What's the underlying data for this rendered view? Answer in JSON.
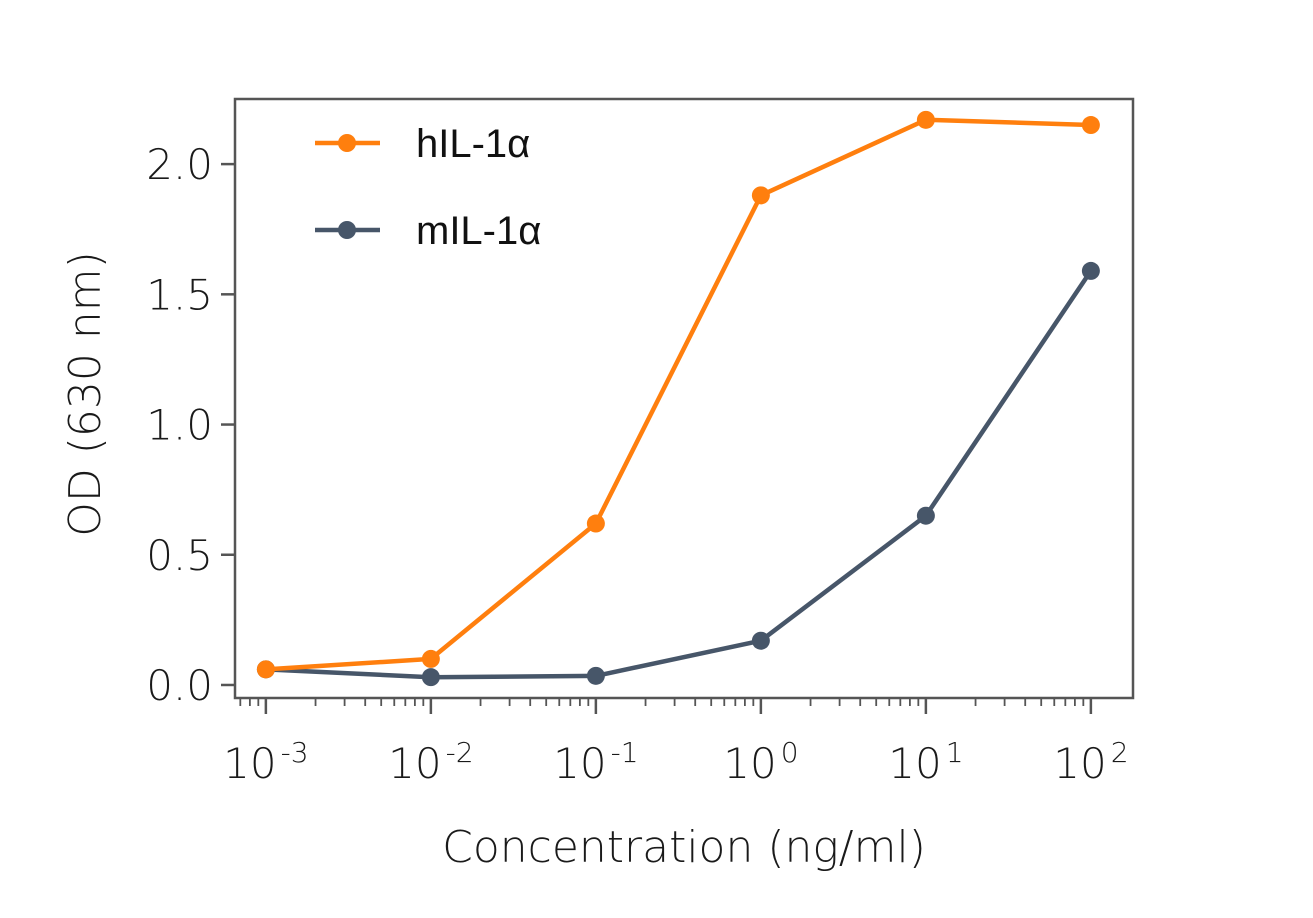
{
  "chart_data": {
    "type": "line",
    "title": "",
    "xlabel": "Concentration (ng/ml)",
    "ylabel": "OD (630 nm)",
    "x_scale": "log",
    "xlim": [
      0.00065,
      180
    ],
    "ylim": [
      -0.05,
      2.25
    ],
    "x": [
      0.001,
      0.01,
      0.1,
      1,
      10,
      100
    ],
    "x_ticks": [
      {
        "base": "10",
        "exp": "-3"
      },
      {
        "base": "10",
        "exp": "-2"
      },
      {
        "base": "10",
        "exp": "-1"
      },
      {
        "base": "10",
        "exp": "0"
      },
      {
        "base": "10",
        "exp": "1"
      },
      {
        "base": "10",
        "exp": "2"
      }
    ],
    "y_ticks": [
      "0.0",
      "0.5",
      "1.0",
      "1.5",
      "2.0"
    ],
    "grid": false,
    "legend_position": "top-left",
    "series": [
      {
        "name": "hIL-1α",
        "color": "#FF7F0E",
        "values": [
          0.06,
          0.1,
          0.62,
          1.88,
          2.17,
          2.15
        ]
      },
      {
        "name": "mIL-1α",
        "color": "#475669",
        "values": [
          0.06,
          0.03,
          0.035,
          0.17,
          0.65,
          1.59
        ]
      }
    ]
  }
}
